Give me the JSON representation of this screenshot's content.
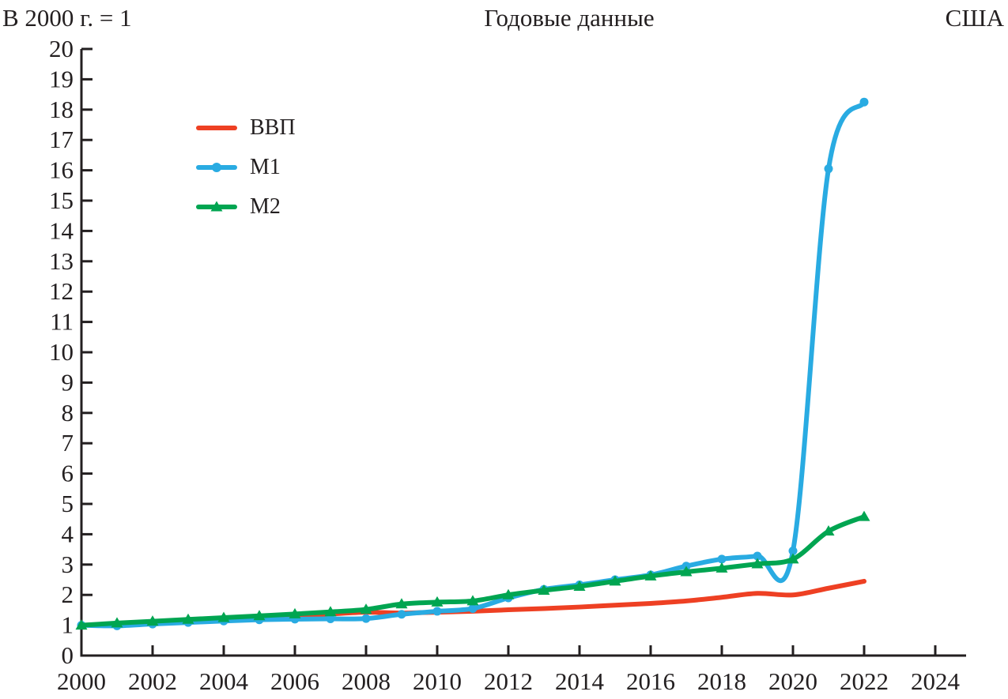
{
  "header": {
    "left_note": "В 2000 г. = 1",
    "title": "Годовые данные",
    "right_label": "США"
  },
  "legend": {
    "items": [
      {
        "key": "gdp",
        "label": "ВВП",
        "color": "#ee4023",
        "marker": "none"
      },
      {
        "key": "m1",
        "label": "М1",
        "color": "#29abe2",
        "marker": "circle"
      },
      {
        "key": "m2",
        "label": "М2",
        "color": "#00a551",
        "marker": "triangle"
      }
    ]
  },
  "chart_data": {
    "type": "line",
    "title": "Годовые данные",
    "subtitle_left": "В 2000 г. = 1",
    "subtitle_right": "США",
    "xlabel": "",
    "ylabel": "В 2000 г. = 1",
    "xlim": [
      2000,
      2025
    ],
    "ylim": [
      0,
      20
    ],
    "grid": false,
    "legend_position": "upper-left-inside",
    "x_ticks": [
      2000,
      2002,
      2004,
      2006,
      2008,
      2010,
      2012,
      2014,
      2016,
      2018,
      2020,
      2022,
      2024
    ],
    "y_ticks": [
      0,
      1,
      2,
      3,
      4,
      5,
      6,
      7,
      8,
      9,
      10,
      11,
      12,
      13,
      14,
      15,
      16,
      17,
      18,
      19,
      20
    ],
    "x": [
      2000,
      2001,
      2002,
      2003,
      2004,
      2005,
      2006,
      2007,
      2008,
      2009,
      2010,
      2011,
      2012,
      2013,
      2014,
      2015,
      2016,
      2017,
      2018,
      2019,
      2020,
      2021,
      2022
    ],
    "series": [
      {
        "name": "ВВП",
        "key": "gdp",
        "color": "#ee4023",
        "marker": "none",
        "values": [
          1.0,
          1.03,
          1.06,
          1.11,
          1.17,
          1.24,
          1.3,
          1.37,
          1.43,
          1.4,
          1.43,
          1.46,
          1.51,
          1.55,
          1.6,
          1.66,
          1.72,
          1.8,
          1.92,
          2.05,
          2.0,
          2.22,
          2.45
        ]
      },
      {
        "name": "М1",
        "key": "m1",
        "color": "#29abe2",
        "marker": "circle",
        "values": [
          1.0,
          0.98,
          1.04,
          1.09,
          1.14,
          1.18,
          1.2,
          1.21,
          1.22,
          1.36,
          1.46,
          1.55,
          1.9,
          2.18,
          2.33,
          2.5,
          2.66,
          2.95,
          3.18,
          3.28,
          3.45,
          16.05,
          18.25
        ]
      },
      {
        "name": "М2",
        "key": "m2",
        "color": "#00a551",
        "marker": "triangle",
        "values": [
          1.0,
          1.07,
          1.13,
          1.19,
          1.25,
          1.31,
          1.37,
          1.44,
          1.52,
          1.7,
          1.76,
          1.8,
          2.0,
          2.15,
          2.28,
          2.45,
          2.62,
          2.76,
          2.88,
          3.02,
          3.18,
          4.1,
          4.58
        ]
      }
    ]
  }
}
